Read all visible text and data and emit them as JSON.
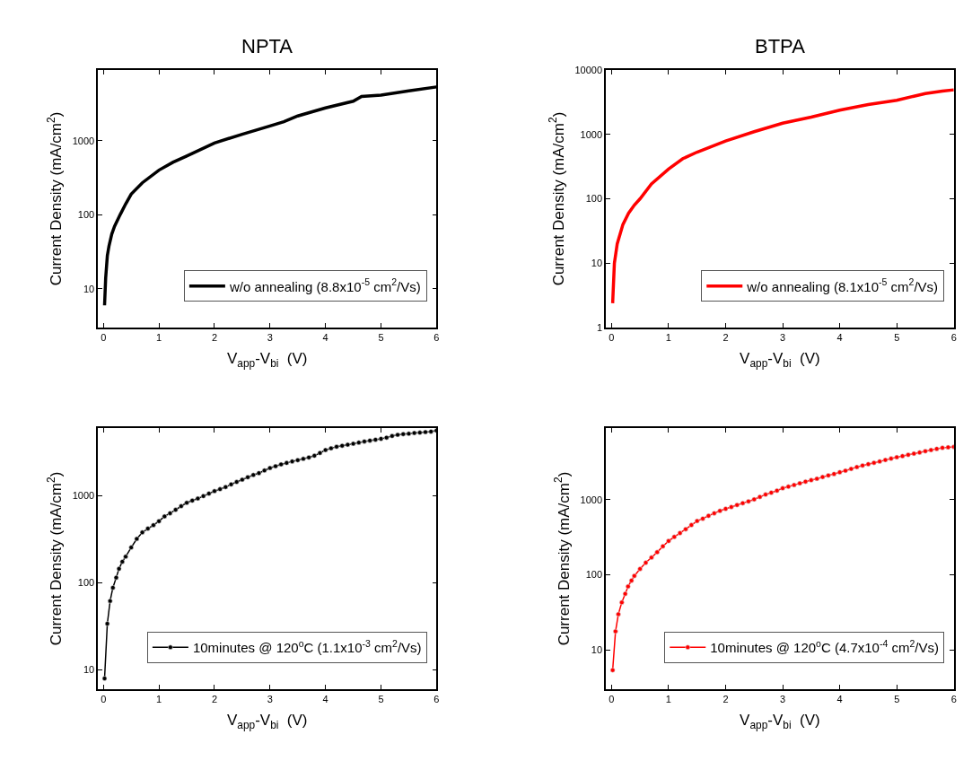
{
  "chart_data": [
    {
      "type": "line",
      "title": "NPTA",
      "xlabel": "V$_{app}$-V$_{bi}$  (V)",
      "ylabel": "Current Density (mA/cm$^{2}$)",
      "log": "y",
      "grid": false,
      "legend": "bottom right",
      "marker": "none",
      "xlim": [
        -0.1,
        6
      ],
      "xticks": [
        0,
        1,
        2,
        3,
        4,
        5,
        6
      ],
      "ylim": [
        3,
        9000
      ],
      "yticks": [
        10,
        100,
        1000
      ],
      "x": [
        0.02,
        0.04,
        0.07,
        0.1,
        0.15,
        0.2,
        0.3,
        0.4,
        0.5,
        0.7,
        1,
        1.25,
        1.5,
        2,
        2.5,
        3,
        3.25,
        3.5,
        4,
        4.5,
        4.65,
        5,
        5.5,
        6
      ],
      "series": [
        {
          "name": "w/o annealing (8.8x10$^{-5}$ cm$^{2}$/Vs)",
          "color": "#000000",
          "values": [
            6,
            14,
            28,
            38,
            55,
            70,
            100,
            140,
            190,
            270,
            400,
            510,
            620,
            930,
            1220,
            1580,
            1800,
            2150,
            2760,
            3400,
            3950,
            4100,
            4700,
            5300
          ]
        }
      ]
    },
    {
      "type": "line",
      "title": "BTPA",
      "xlabel": "V$_{app}$-V$_{bi}$  (V)",
      "ylabel": "Current Density (mA/cm$^{2}$)",
      "log": "y",
      "grid": false,
      "legend": "bottom right",
      "marker": "none",
      "xlim": [
        -0.1,
        6
      ],
      "xticks": [
        0,
        1,
        2,
        3,
        4,
        5,
        6
      ],
      "ylim": [
        1,
        10000
      ],
      "yticks": [
        1,
        10,
        100,
        1000,
        10000
      ],
      "x": [
        0.02,
        0.05,
        0.1,
        0.2,
        0.3,
        0.4,
        0.5,
        0.7,
        1,
        1.25,
        1.5,
        2,
        2.5,
        3,
        3.5,
        4,
        4.5,
        5,
        5.3,
        5.5,
        5.8,
        6
      ],
      "series": [
        {
          "name": "w/o annealing (8.1x10$^{-5}$ cm$^{2}$/Vs)",
          "color": "#ff0000",
          "values": [
            2.4,
            10,
            20,
            40,
            60,
            80,
            100,
            170,
            290,
            420,
            530,
            790,
            1100,
            1490,
            1850,
            2370,
            2900,
            3380,
            3900,
            4300,
            4700,
            4900
          ]
        }
      ]
    },
    {
      "type": "line",
      "xlabel": "V$_{app}$-V$_{bi}$  (V)",
      "ylabel": "Current Density (mA/cm$^{2}$)",
      "log": "y",
      "grid": false,
      "legend": "bottom right",
      "marker": "circle",
      "xlim": [
        -0.1,
        6
      ],
      "xticks": [
        0,
        1,
        2,
        3,
        4,
        5,
        6
      ],
      "ylim": [
        6,
        6000
      ],
      "yticks": [
        10,
        100,
        1000
      ],
      "x": [
        0.02,
        0.07,
        0.12,
        0.17,
        0.23,
        0.28,
        0.34,
        0.4,
        0.5,
        0.6,
        0.7,
        0.8,
        0.9,
        1.0,
        1.1,
        1.2,
        1.3,
        1.4,
        1.5,
        1.6,
        1.7,
        1.8,
        1.9,
        2.0,
        2.1,
        2.2,
        2.3,
        2.4,
        2.5,
        2.6,
        2.7,
        2.8,
        2.9,
        3.0,
        3.1,
        3.2,
        3.3,
        3.4,
        3.5,
        3.6,
        3.7,
        3.8,
        3.9,
        4.0,
        4.1,
        4.2,
        4.3,
        4.4,
        4.5,
        4.6,
        4.7,
        4.8,
        4.9,
        5.0,
        5.1,
        5.2,
        5.3,
        5.4,
        5.5,
        5.6,
        5.7,
        5.8,
        5.9,
        6.0
      ],
      "series": [
        {
          "name": "10minutes @ 120$^{o}$C (1.1x10$^{-3}$ cm$^{2}$/Vs)",
          "color": "#000000",
          "values": [
            8,
            34,
            62,
            88,
            115,
            145,
            175,
            200,
            255,
            320,
            380,
            420,
            460,
            510,
            580,
            630,
            690,
            760,
            830,
            880,
            930,
            990,
            1060,
            1130,
            1190,
            1260,
            1350,
            1440,
            1530,
            1630,
            1730,
            1820,
            1950,
            2080,
            2180,
            2290,
            2380,
            2480,
            2560,
            2650,
            2750,
            2880,
            3100,
            3350,
            3500,
            3650,
            3750,
            3850,
            3960,
            4080,
            4200,
            4300,
            4400,
            4500,
            4650,
            4850,
            5000,
            5100,
            5150,
            5250,
            5300,
            5380,
            5450,
            5600
          ]
        }
      ]
    },
    {
      "type": "line",
      "xlabel": "V$_{app}$-V$_{bi}$  (V)",
      "ylabel": "Current Density (mA/cm$^{2}$)",
      "log": "y",
      "grid": false,
      "legend": "bottom right",
      "marker": "circle",
      "xlim": [
        -0.1,
        6
      ],
      "xticks": [
        0,
        1,
        2,
        3,
        4,
        5,
        6
      ],
      "ylim": [
        3,
        9000
      ],
      "yticks": [
        10,
        100,
        1000
      ],
      "x": [
        0.02,
        0.07,
        0.12,
        0.18,
        0.24,
        0.29,
        0.35,
        0.4,
        0.5,
        0.6,
        0.7,
        0.8,
        0.9,
        1.0,
        1.1,
        1.2,
        1.3,
        1.4,
        1.5,
        1.6,
        1.7,
        1.8,
        1.9,
        2.0,
        2.1,
        2.2,
        2.3,
        2.4,
        2.5,
        2.6,
        2.7,
        2.8,
        2.9,
        3.0,
        3.1,
        3.2,
        3.3,
        3.4,
        3.5,
        3.6,
        3.7,
        3.8,
        3.9,
        4.0,
        4.1,
        4.2,
        4.3,
        4.4,
        4.5,
        4.6,
        4.7,
        4.8,
        4.9,
        5.0,
        5.1,
        5.2,
        5.3,
        5.4,
        5.5,
        5.6,
        5.7,
        5.8,
        5.9,
        6.0
      ],
      "series": [
        {
          "name": "10minutes @ 120$^{o}$C (4.7x10$^{-4}$ cm$^{2}$/Vs)",
          "color": "#ff0000",
          "values": [
            5.4,
            17.7,
            30,
            43,
            56,
            70,
            84,
            97,
            120,
            145,
            170,
            200,
            240,
            282,
            320,
            360,
            405,
            460,
            520,
            560,
            610,
            660,
            710,
            755,
            800,
            850,
            900,
            950,
            1010,
            1090,
            1170,
            1240,
            1320,
            1420,
            1490,
            1570,
            1650,
            1740,
            1820,
            1900,
            2000,
            2100,
            2200,
            2320,
            2430,
            2570,
            2720,
            2850,
            2970,
            3100,
            3230,
            3370,
            3520,
            3670,
            3800,
            3950,
            4100,
            4250,
            4420,
            4580,
            4750,
            4900,
            4980,
            5050
          ]
        }
      ]
    }
  ]
}
